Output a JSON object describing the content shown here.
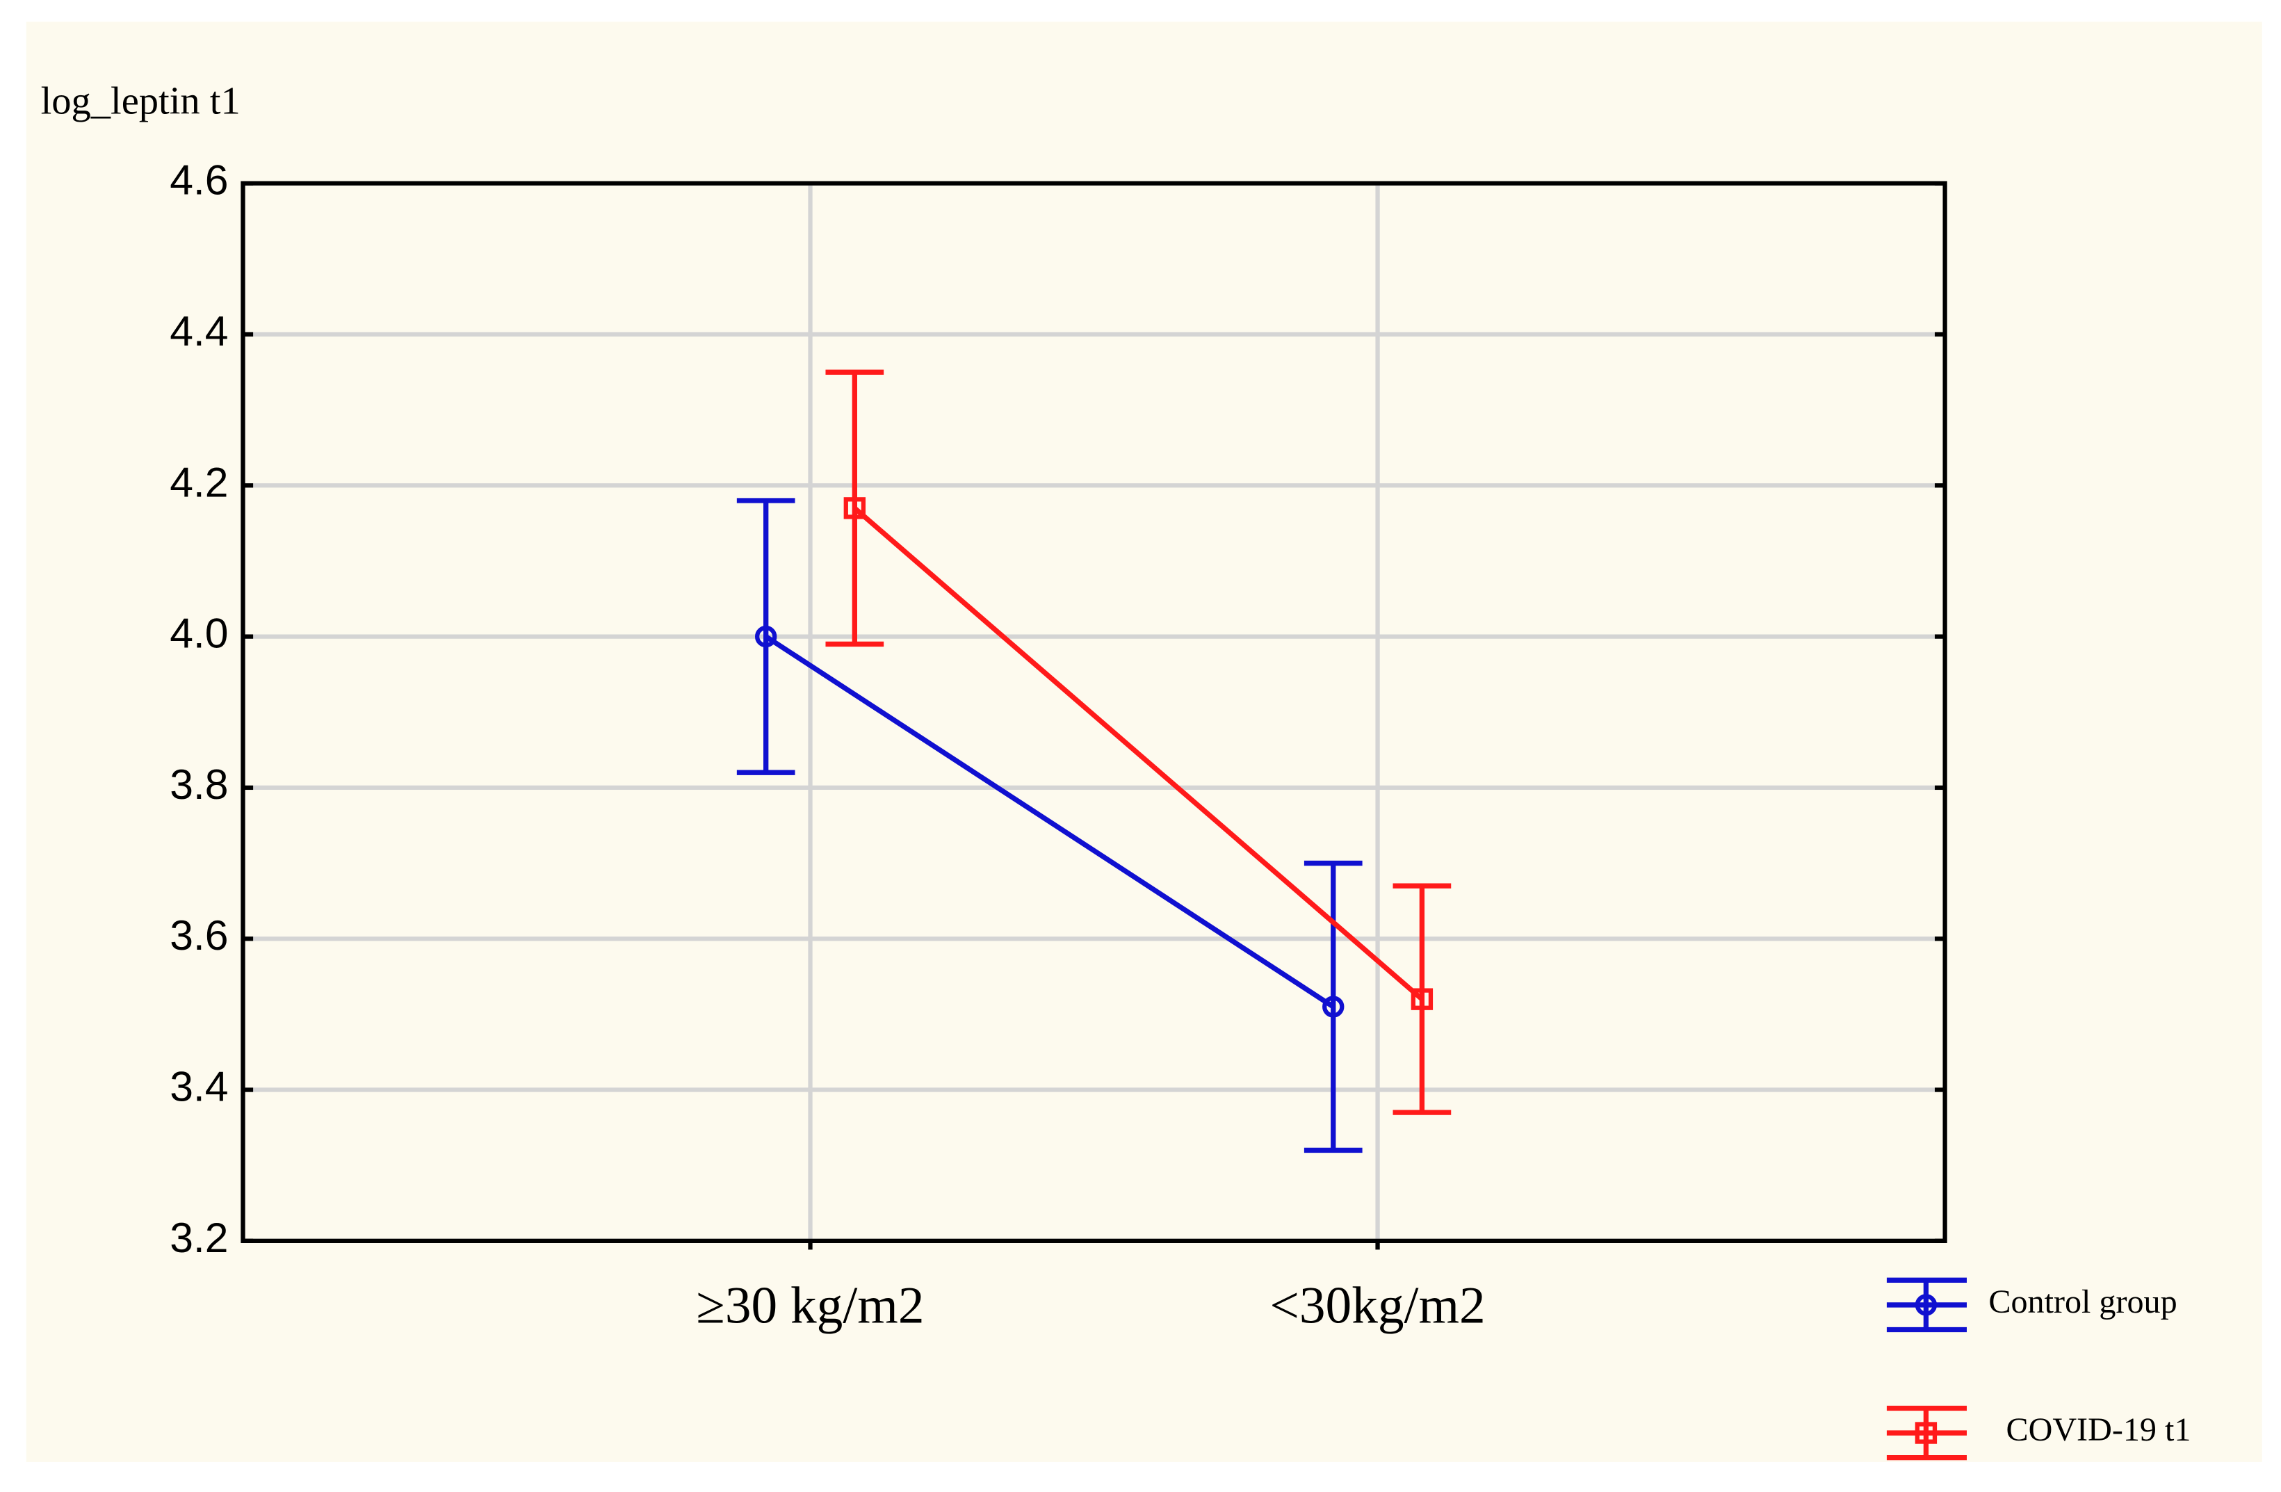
{
  "chart_data": {
    "type": "line",
    "y_label": "log_leptin t1",
    "categories": [
      "≥30 kg/m2",
      "<30kg/m2"
    ],
    "series": [
      {
        "name": "Control group",
        "color": "#1010d0",
        "marker": "circle",
        "values": [
          4.0,
          3.51
        ],
        "errors": [
          0.18,
          0.19
        ]
      },
      {
        "name": "COVID-19 t1",
        "color": "#ff1a1a",
        "marker": "square",
        "values": [
          4.17,
          3.52
        ],
        "errors": [
          0.18,
          0.15
        ]
      }
    ],
    "ylim": [
      3.2,
      4.6
    ],
    "yticks": [
      3.2,
      3.4,
      3.6,
      3.8,
      {
        "value": 4.0,
        "label": "4.0"
      },
      4.2,
      4.4,
      4.6
    ],
    "grid": true,
    "legend": "bottom-right"
  }
}
